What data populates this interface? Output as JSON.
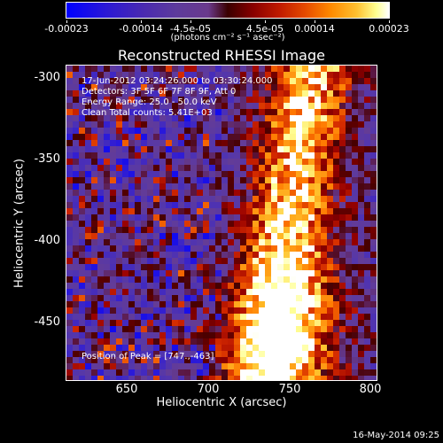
{
  "colorbar": {
    "tick_labels": [
      "-0.00023",
      "-0.00014",
      "-4.5e-05",
      "4.5e-05",
      "0.00014",
      "0.00023"
    ],
    "unit_label": "(photons cm⁻² s⁻¹ asec⁻²)",
    "range": [
      -0.00023,
      0.00023
    ]
  },
  "plot": {
    "title": "Reconstructed RHESSI Image",
    "xlabel": "Heliocentric X (arcsec)",
    "ylabel": "Heliocentric Y (arcsec)",
    "x_ticks": [
      "650",
      "700",
      "750",
      "800"
    ],
    "y_ticks": [
      "-300",
      "-350",
      "-400",
      "-450"
    ],
    "xlim": [
      615,
      805
    ],
    "ylim": [
      -487,
      -295
    ],
    "info": [
      "17-Jun-2012 03:24:26.000 to 03:30:24.000",
      "Detectors: 3F 5F 6F 7F 8F 9F, Att 0",
      "Energy Range: 25.0 - 50.0 keV",
      "Clean      Total counts: 5.41E+03"
    ],
    "peak_label": "Position of Peak = [747.,-463]"
  },
  "footer": {
    "timestamp": "16-May-2014 09:25"
  }
}
